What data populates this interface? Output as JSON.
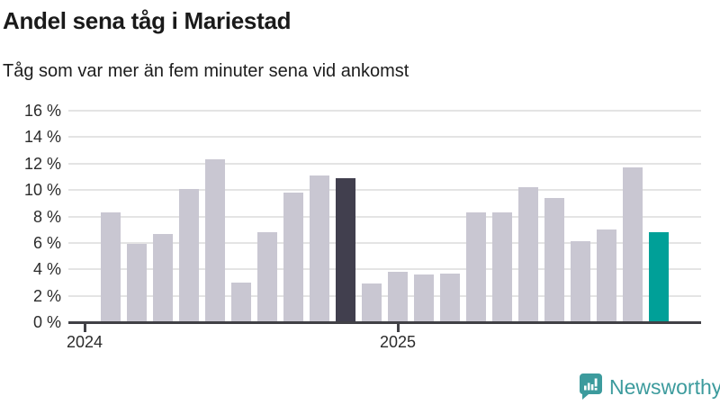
{
  "header": {
    "title": "Andel sena tåg i Mariestad",
    "subtitle": "Tåg som var mer än fem minuter sena vid ankomst"
  },
  "branding": {
    "logo_text": "Newsworthy",
    "logo_color": "#3c9b9d"
  },
  "chart_data": {
    "type": "bar",
    "title": "Andel sena tåg i Mariestad",
    "subtitle": "Tåg som var mer än fem minuter sena vid ankomst",
    "unit": "%",
    "ylim": [
      0,
      16
    ],
    "ytick_step": 2,
    "grid": true,
    "legend": "none",
    "yticks": [
      {
        "value": 0,
        "label": "0 %"
      },
      {
        "value": 2,
        "label": "2 %"
      },
      {
        "value": 4,
        "label": "4 %"
      },
      {
        "value": 6,
        "label": "6 %"
      },
      {
        "value": 8,
        "label": "8 %"
      },
      {
        "value": 10,
        "label": "10 %"
      },
      {
        "value": 12,
        "label": "12 %"
      },
      {
        "value": 14,
        "label": "14 %"
      },
      {
        "value": 16,
        "label": "16 %"
      }
    ],
    "xticks": [
      {
        "label": "2024",
        "month": "2024-01"
      },
      {
        "label": "2025",
        "month": "2025-01"
      }
    ],
    "colors": {
      "default": "#c9c7d2",
      "dark": "#413f4e",
      "accent": "#00a098"
    },
    "points": [
      {
        "month": "2024-02",
        "value": 8.3,
        "color": "default"
      },
      {
        "month": "2024-03",
        "value": 5.9,
        "color": "default"
      },
      {
        "month": "2024-04",
        "value": 6.7,
        "color": "default"
      },
      {
        "month": "2024-05",
        "value": 10.1,
        "color": "default"
      },
      {
        "month": "2024-06",
        "value": 12.3,
        "color": "default"
      },
      {
        "month": "2024-07",
        "value": 3.0,
        "color": "default"
      },
      {
        "month": "2024-08",
        "value": 6.8,
        "color": "default"
      },
      {
        "month": "2024-09",
        "value": 9.8,
        "color": "default"
      },
      {
        "month": "2024-10",
        "value": 11.1,
        "color": "default"
      },
      {
        "month": "2024-11",
        "value": 10.9,
        "color": "dark"
      },
      {
        "month": "2024-12",
        "value": 2.9,
        "color": "default"
      },
      {
        "month": "2025-01",
        "value": 3.8,
        "color": "default"
      },
      {
        "month": "2025-02",
        "value": 3.6,
        "color": "default"
      },
      {
        "month": "2025-03",
        "value": 3.7,
        "color": "default"
      },
      {
        "month": "2025-04",
        "value": 8.3,
        "color": "default"
      },
      {
        "month": "2025-05",
        "value": 8.3,
        "color": "default"
      },
      {
        "month": "2025-06",
        "value": 10.2,
        "color": "default"
      },
      {
        "month": "2025-07",
        "value": 9.4,
        "color": "default"
      },
      {
        "month": "2025-08",
        "value": 6.1,
        "color": "default"
      },
      {
        "month": "2025-09",
        "value": 7.0,
        "color": "default"
      },
      {
        "month": "2025-10",
        "value": 11.7,
        "color": "default"
      },
      {
        "month": "2025-11",
        "value": 6.8,
        "color": "accent"
      }
    ]
  }
}
